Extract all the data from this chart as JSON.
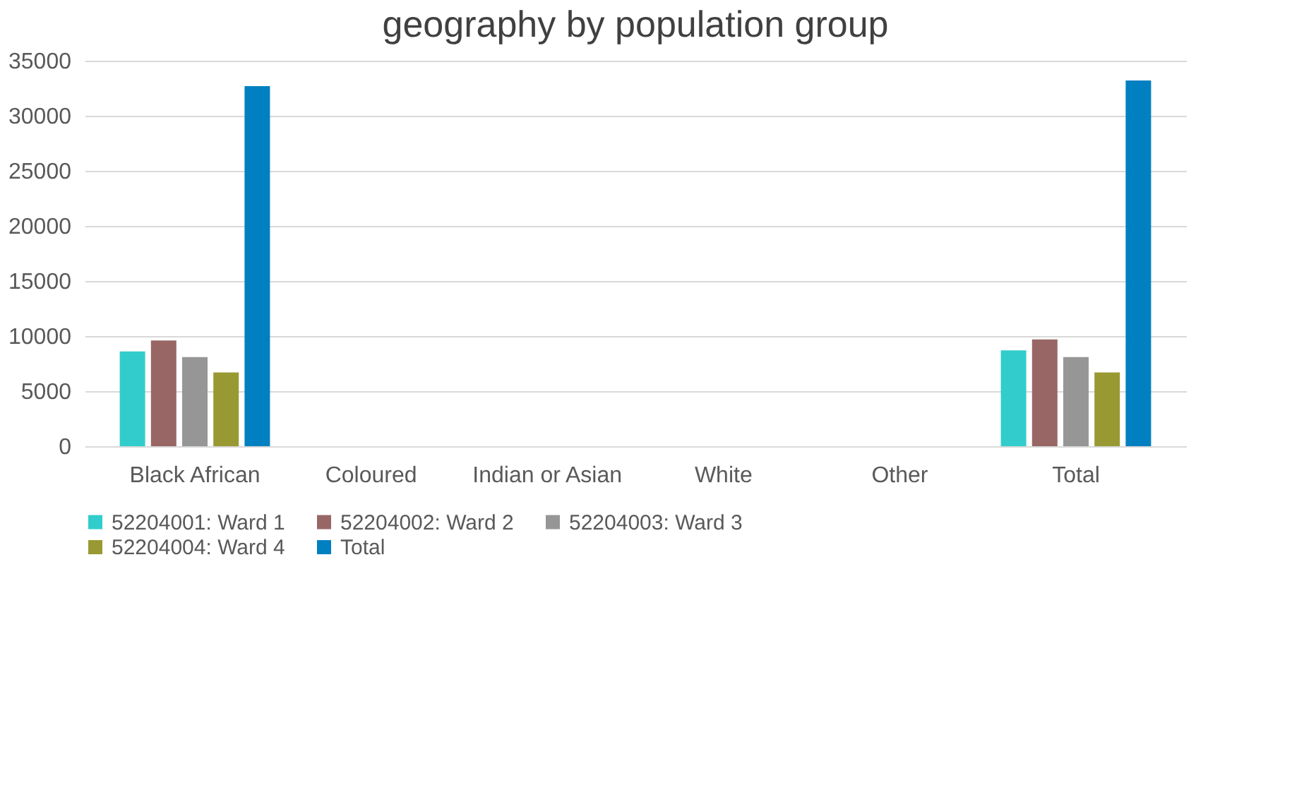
{
  "chart_data": {
    "type": "bar",
    "title": "geography by population group",
    "categories": [
      "Black African",
      "Coloured",
      "Indian or Asian",
      "White",
      "Other",
      "Total"
    ],
    "series": [
      {
        "name": "52204001: Ward 1",
        "color": "#33cccc",
        "values": [
          8600,
          0,
          0,
          0,
          0,
          8700
        ]
      },
      {
        "name": "52204002: Ward 2",
        "color": "#996666",
        "values": [
          9600,
          0,
          0,
          0,
          0,
          9700
        ]
      },
      {
        "name": "52204003: Ward 3",
        "color": "#969696",
        "values": [
          8100,
          0,
          0,
          0,
          0,
          8100
        ]
      },
      {
        "name": "52204004: Ward 4",
        "color": "#999933",
        "values": [
          6700,
          0,
          0,
          0,
          0,
          6700
        ]
      },
      {
        "name": "Total",
        "color": "#0080c0",
        "values": [
          32700,
          0,
          0,
          0,
          0,
          33200
        ]
      }
    ],
    "ylim": [
      0,
      35000
    ],
    "yticks": [
      0,
      5000,
      10000,
      15000,
      20000,
      25000,
      30000,
      35000
    ],
    "grid": "y",
    "legend": "bottom"
  }
}
